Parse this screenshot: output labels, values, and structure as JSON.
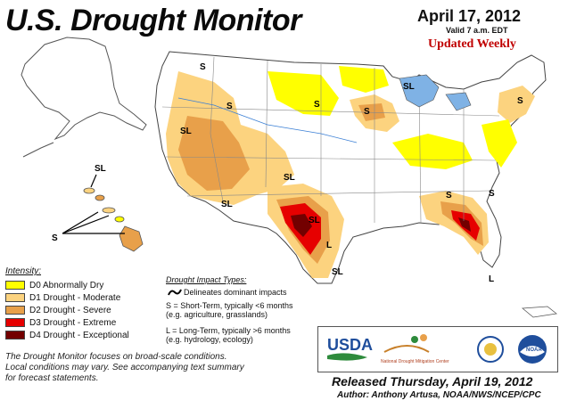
{
  "header": {
    "title": "U.S. Drought Monitor",
    "date": "April 17, 2012",
    "valid": "Valid 7 a.m. EDT",
    "updated": "Updated Weekly"
  },
  "legend": {
    "title": "Intensity:",
    "items": [
      {
        "label": "D0 Abnormally Dry",
        "color": "#ffff00"
      },
      {
        "label": "D1 Drought - Moderate",
        "color": "#fcd37f"
      },
      {
        "label": "D2 Drought - Severe",
        "color": "#e8a04a"
      },
      {
        "label": "D3 Drought - Extreme",
        "color": "#e60000"
      },
      {
        "label": "D4 Drought - Exceptional",
        "color": "#730000"
      }
    ]
  },
  "impacts": {
    "title": "Drought Impact Types:",
    "delineates": "Delineates dominant impacts",
    "short_1": "S = Short-Term, typically <6 months",
    "short_2": "(e.g. agriculture, grasslands)",
    "long_1": "L = Long-Term, typically >6 months",
    "long_2": "(e.g. hydrology, ecology)"
  },
  "footnote": {
    "line1": "The Drought Monitor focuses on broad-scale conditions.",
    "line2": "Local conditions may vary. See accompanying text summary",
    "line3": "for forecast statements."
  },
  "logos": {
    "usda": "USDA",
    "ndmc": "National Drought Mitigation Center",
    "noaa": "NOAA"
  },
  "footer": {
    "released": "Released Thursday, April 19, 2012",
    "author": "Author: Anthony Artusa, NOAA/NWS/NCEP/CPC"
  },
  "map_labels": {
    "s": "S",
    "l": "L",
    "sl": "SL"
  },
  "colors": {
    "d0": "#ffff00",
    "d1": "#fcd37f",
    "d2": "#e8a04a",
    "d3": "#e60000",
    "d4": "#730000",
    "usda_blue": "#1f4e9c",
    "usda_green": "#2e8b3c"
  }
}
